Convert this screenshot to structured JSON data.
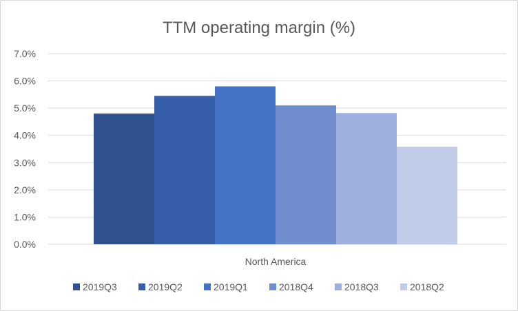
{
  "chart_data": {
    "type": "bar",
    "title": "TTM operating margin (%)",
    "categories": [
      "North America"
    ],
    "series": [
      {
        "name": "2019Q3",
        "values": [
          4.8
        ],
        "color": "#2f528f"
      },
      {
        "name": "2019Q2",
        "values": [
          5.45
        ],
        "color": "#365ea9"
      },
      {
        "name": "2019Q1",
        "values": [
          5.8
        ],
        "color": "#4472c4"
      },
      {
        "name": "2018Q4",
        "values": [
          5.1
        ],
        "color": "#6f8ccf"
      },
      {
        "name": "2018Q3",
        "values": [
          4.82
        ],
        "color": "#9dafdc"
      },
      {
        "name": "2018Q2",
        "values": [
          3.58
        ],
        "color": "#c0cce8"
      }
    ],
    "ylim": [
      0,
      7
    ],
    "yticks": [
      "0.0%",
      "1.0%",
      "2.0%",
      "3.0%",
      "4.0%",
      "5.0%",
      "6.0%",
      "7.0%"
    ],
    "grid": true,
    "legend": "bottom"
  }
}
